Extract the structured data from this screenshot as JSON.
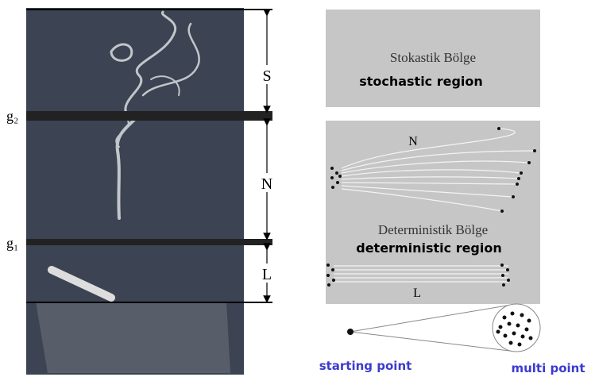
{
  "left_panel": {
    "gauges": {
      "g2": "g₂",
      "g1": "g₁"
    },
    "zones": {
      "top": "S",
      "middle": "N",
      "bottom": "L"
    }
  },
  "right_panel": {
    "stochastic": {
      "label_tr": "Stokastik Bölge",
      "label_en": "stochastic region"
    },
    "deterministic": {
      "top_label": "N",
      "label_tr": "Deterministik Bölge",
      "label_en": "deterministic region",
      "bottom_label": "L"
    },
    "legend": {
      "start": "starting point",
      "multi": "multi point"
    }
  }
}
